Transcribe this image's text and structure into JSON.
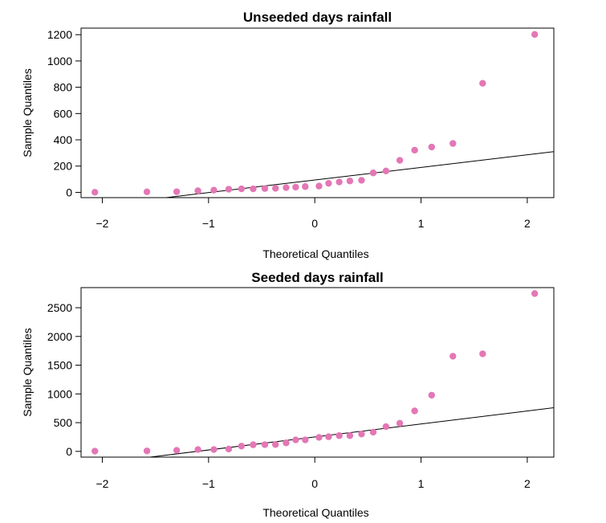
{
  "colors": {
    "points": "#e377b5",
    "line": "#000000",
    "frame": "#000000"
  },
  "chart_data": [
    {
      "type": "scatter",
      "title": "Unseeded days rainfall",
      "xlabel": "Theoretical Quantiles",
      "ylabel": "Sample Quantiles",
      "xlim": [
        -2.2,
        2.25
      ],
      "ylim": [
        -40,
        1250
      ],
      "xticks": [
        -2,
        -1,
        0,
        1,
        2
      ],
      "xtick_labels": [
        "−2",
        "−1",
        "0",
        "1",
        "2"
      ],
      "yticks": [
        0,
        200,
        400,
        600,
        800,
        1000,
        1200
      ],
      "grid": false,
      "x": [
        -2.07,
        -1.58,
        -1.3,
        -1.1,
        -0.95,
        -0.81,
        -0.69,
        -0.58,
        -0.47,
        -0.37,
        -0.27,
        -0.18,
        -0.09,
        0.04,
        0.13,
        0.23,
        0.33,
        0.44,
        0.55,
        0.67,
        0.8,
        0.94,
        1.1,
        1.3,
        1.58,
        2.07
      ],
      "y": [
        1,
        4,
        5,
        12,
        17,
        24,
        27,
        27,
        29,
        31,
        36,
        40,
        44,
        48,
        69,
        79,
        87,
        92,
        148,
        163,
        244,
        321,
        345,
        372,
        830,
        1202
      ],
      "qq_line": {
        "x1": -1.4,
        "y1": -40,
        "x2": 2.25,
        "y2": 310
      }
    },
    {
      "type": "scatter",
      "title": "Seeded days rainfall",
      "xlabel": "Theoretical Quantiles",
      "ylabel": "Sample Quantiles",
      "xlim": [
        -2.2,
        2.25
      ],
      "ylim": [
        -100,
        2850
      ],
      "xticks": [
        -2,
        -1,
        0,
        1,
        2
      ],
      "xtick_labels": [
        "−2",
        "−1",
        "0",
        "1",
        "2"
      ],
      "yticks": [
        0,
        500,
        1000,
        1500,
        2000,
        2500
      ],
      "grid": false,
      "x": [
        -2.07,
        -1.58,
        -1.3,
        -1.1,
        -0.95,
        -0.81,
        -0.69,
        -0.58,
        -0.47,
        -0.37,
        -0.27,
        -0.18,
        -0.09,
        0.04,
        0.13,
        0.23,
        0.33,
        0.44,
        0.55,
        0.67,
        0.8,
        0.94,
        1.1,
        1.3,
        1.58,
        2.07
      ],
      "y": [
        4,
        8,
        18,
        32,
        32,
        41,
        92,
        115,
        118,
        120,
        148,
        200,
        200,
        243,
        255,
        274,
        274,
        302,
        334,
        430,
        489,
        704,
        978,
        1656,
        1698,
        2746
      ],
      "qq_line": {
        "x1": -1.55,
        "y1": -100,
        "x2": 2.25,
        "y2": 760
      }
    }
  ]
}
